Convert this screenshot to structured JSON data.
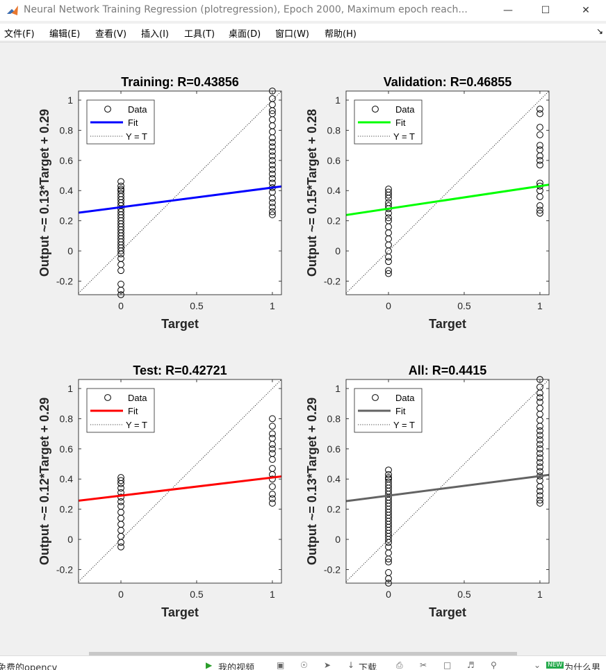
{
  "window": {
    "title": "Neural Network Training Regression (plotregression), Epoch 2000, Maximum epoch reach...",
    "minimize_icon": "minimize-icon",
    "maximize_icon": "maximize-icon",
    "close_icon": "close-icon"
  },
  "menu": {
    "items": [
      "文件(F)",
      "编辑(E)",
      "查看(V)",
      "插入(I)",
      "工具(T)",
      "桌面(D)",
      "窗口(W)",
      "帮助(H)"
    ],
    "dock_icon": "dock-arrow-icon"
  },
  "taskbar": {
    "left_text": "免费的opencv",
    "my_video": "我的视频",
    "download": "下载",
    "right_text": "为什么男",
    "badge": "NEW"
  },
  "colors": {
    "training_fit": "#0000ff",
    "validation_fit": "#00ff00",
    "test_fit": "#ff0000",
    "all_fit": "#636363"
  },
  "chart_data": [
    {
      "type": "scatter",
      "title": "Training: R=0.43856",
      "xlabel": "Target",
      "ylabel": "Output ~= 0.13*Target + 0.29",
      "xlim": [
        -0.28,
        1.06
      ],
      "ylim": [
        -0.29,
        1.06
      ],
      "xticks": [
        "0",
        "0.5",
        "1"
      ],
      "yticks": [
        "-0.2",
        "0",
        "0.2",
        "0.4",
        "0.6",
        "0.8",
        "1"
      ],
      "fit": {
        "slope": 0.13,
        "intercept": 0.29,
        "color": "#0000ff"
      },
      "legend": {
        "placement": "top-left",
        "entries": [
          "Data",
          "Fit",
          "Y = T"
        ]
      },
      "points": [
        {
          "x": 0,
          "ys": [
            -0.29,
            -0.26,
            -0.22,
            -0.13,
            -0.09,
            -0.05,
            -0.02,
            0.0,
            0.02,
            0.04,
            0.06,
            0.08,
            0.1,
            0.12,
            0.14,
            0.16,
            0.18,
            0.2,
            0.22,
            0.24,
            0.26,
            0.28,
            0.3,
            0.32,
            0.34,
            0.36,
            0.38,
            0.4,
            0.41,
            0.43,
            0.46
          ]
        },
        {
          "x": 1,
          "ys": [
            0.24,
            0.26,
            0.29,
            0.32,
            0.35,
            0.39,
            0.42,
            0.45,
            0.48,
            0.51,
            0.54,
            0.57,
            0.6,
            0.63,
            0.66,
            0.69,
            0.72,
            0.75,
            0.79,
            0.83,
            0.87,
            0.91,
            0.93,
            0.97,
            1.01,
            1.06
          ]
        }
      ]
    },
    {
      "type": "scatter",
      "title": "Validation: R=0.46855",
      "xlabel": "Target",
      "ylabel": "Output ~= 0.15*Target + 0.28",
      "xlim": [
        -0.28,
        1.06
      ],
      "ylim": [
        -0.29,
        1.06
      ],
      "xticks": [
        "0",
        "0.5",
        "1"
      ],
      "yticks": [
        "-0.2",
        "0",
        "0.2",
        "0.4",
        "0.6",
        "0.8",
        "1"
      ],
      "fit": {
        "slope": 0.15,
        "intercept": 0.28,
        "color": "#00ff00"
      },
      "legend": {
        "placement": "top-left",
        "entries": [
          "Data",
          "Fit",
          "Y = T"
        ]
      },
      "points": [
        {
          "x": 0,
          "ys": [
            -0.15,
            -0.13,
            -0.07,
            -0.04,
            0.0,
            0.04,
            0.08,
            0.12,
            0.16,
            0.2,
            0.22,
            0.25,
            0.28,
            0.3,
            0.32,
            0.35,
            0.37,
            0.39,
            0.41
          ]
        },
        {
          "x": 1,
          "ys": [
            0.25,
            0.27,
            0.3,
            0.36,
            0.4,
            0.43,
            0.45,
            0.57,
            0.6,
            0.63,
            0.67,
            0.7,
            0.77,
            0.82,
            0.91,
            0.94
          ]
        }
      ]
    },
    {
      "type": "scatter",
      "title": "Test: R=0.42721",
      "xlabel": "Target",
      "ylabel": "Output ~= 0.12*Target + 0.29",
      "xlim": [
        -0.28,
        1.06
      ],
      "ylim": [
        -0.29,
        1.06
      ],
      "xticks": [
        "0",
        "0.5",
        "1"
      ],
      "yticks": [
        "-0.2",
        "0",
        "0.2",
        "0.4",
        "0.6",
        "0.8",
        "1"
      ],
      "fit": {
        "slope": 0.12,
        "intercept": 0.29,
        "color": "#ff0000"
      },
      "legend": {
        "placement": "top-left",
        "entries": [
          "Data",
          "Fit",
          "Y = T"
        ]
      },
      "points": [
        {
          "x": 0,
          "ys": [
            -0.05,
            -0.02,
            0.02,
            0.06,
            0.1,
            0.14,
            0.18,
            0.22,
            0.25,
            0.28,
            0.31,
            0.34,
            0.37,
            0.39,
            0.41
          ]
        },
        {
          "x": 1,
          "ys": [
            0.24,
            0.27,
            0.3,
            0.35,
            0.4,
            0.43,
            0.47,
            0.53,
            0.57,
            0.6,
            0.63,
            0.67,
            0.7,
            0.75,
            0.8
          ]
        }
      ]
    },
    {
      "type": "scatter",
      "title": "All: R=0.4415",
      "xlabel": "Target",
      "ylabel": "Output ~= 0.13*Target + 0.29",
      "xlim": [
        -0.28,
        1.06
      ],
      "ylim": [
        -0.29,
        1.06
      ],
      "xticks": [
        "0",
        "0.5",
        "1"
      ],
      "yticks": [
        "-0.2",
        "0",
        "0.2",
        "0.4",
        "0.6",
        "0.8",
        "1"
      ],
      "fit": {
        "slope": 0.13,
        "intercept": 0.29,
        "color": "#636363"
      },
      "legend": {
        "placement": "top-left",
        "entries": [
          "Data",
          "Fit",
          "Y = T"
        ]
      },
      "points": [
        {
          "x": 0,
          "ys": [
            -0.29,
            -0.26,
            -0.22,
            -0.15,
            -0.13,
            -0.09,
            -0.05,
            -0.02,
            0.0,
            0.02,
            0.04,
            0.06,
            0.08,
            0.1,
            0.12,
            0.14,
            0.16,
            0.18,
            0.2,
            0.22,
            0.24,
            0.26,
            0.28,
            0.3,
            0.32,
            0.34,
            0.36,
            0.38,
            0.4,
            0.41,
            0.43,
            0.46
          ]
        },
        {
          "x": 1,
          "ys": [
            0.24,
            0.26,
            0.29,
            0.32,
            0.35,
            0.39,
            0.42,
            0.45,
            0.48,
            0.51,
            0.54,
            0.57,
            0.6,
            0.63,
            0.66,
            0.69,
            0.72,
            0.75,
            0.79,
            0.83,
            0.87,
            0.91,
            0.94,
            0.97,
            1.01,
            1.06
          ]
        }
      ]
    }
  ]
}
